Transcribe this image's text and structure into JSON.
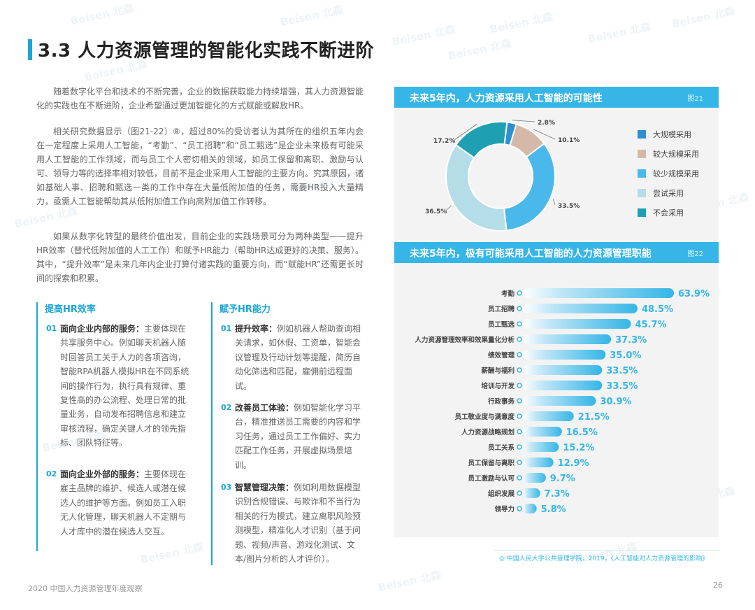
{
  "header": {
    "title": "3.3 人力资源管理的智能化实践不断进阶"
  },
  "body": {
    "p1": "随着数字化平台和技术的不断完善，企业的数据获取能力持续增强，其人力资源智能化的实践也在不断进阶，企业希望通过更加智能化的方式赋能或解放HR。",
    "p2": "相关研究数据显示（图21-22）⑧，超过80%的受访者认为其所在的组织五年内会在一定程度上采用人工智能，“考勤”、“员工招聘”和“员工甄选”是企业未来极有可能采用人工智能的工作领域，而与员工个人密切相关的领域，如员工保留和离职、激励与认可、领导力等的选择率相对较低，目前不是企业采用人工智能的主要方向。究其原因，诸如基础人事、招聘和甄选一类的工作中存在大量低附加值的任务，需要HR投入大量精力，亟需人工智能帮助其从低附加值工作向高附加值工作转移。",
    "p3": "如果从数字化转型的最终价值出发，目前企业的实践场景可分为两种类型——提升HR效率（替代低附加值的人工工作）和赋予HR能力（帮助HR达成更好的决策、服务）。其中，“提升效率”是未来几年内企业打算付诸实践的重要方向，而“赋能HR”还需更长时间的探索和积累。"
  },
  "col1": {
    "heading": "提高HR效率",
    "items": [
      {
        "num": "01",
        "lead": "面向企业内部的服务：",
        "text": "主要体现在共享服务中心。例如聊天机器人随时回答员工关于人力的各项咨询，智能RPA机器人模拟HR在不同系统间的操作行为，执行具有规律、重复性高的办公流程、处理日常的批量业务，自动发布招聘信息和建立审核流程，确定关键人才的领先指标、团队特征等。"
      },
      {
        "num": "02",
        "lead": "面向企业外部的服务：",
        "text": "主要体现在雇主品牌的维护、候选人或潜在候选人的维护等方面。例如员工入职无人化管理，聊天机器人不定期与人才库中的潜在候选人交互。"
      }
    ]
  },
  "col2": {
    "heading": "赋予HR能力",
    "items": [
      {
        "num": "01",
        "lead": "提升效率：",
        "text": "例如机器人帮助查询相关请求，如休假、工资单，智能会议管理及行动计划等提醒，简历自动化筛选和匹配，雇佣前远程面试。"
      },
      {
        "num": "02",
        "lead": "改善员工体验：",
        "text": "例如智能化学习平台，精准推送员工需要的内容和学习任务，通过员工工作偏好、实力匹配工作任务，开展虚拟场景培训。"
      },
      {
        "num": "03",
        "lead": "智慧管理决策：",
        "text": "例如利用数据模型识别合规错误、与欺诈和不当行为相关的行为模式，建立离职风险预测模型，精准化人才识别（基于问题、视频/声音、游戏化测试、文本/图片分析的人才评价）。"
      }
    ]
  },
  "fig21": {
    "title": "未来5年内，人力资源采用人工智能的可能性",
    "no": "图21"
  },
  "fig22": {
    "title": "未来5年内，极有可能采用人工智能的人力资源管理职能",
    "no": "图22"
  },
  "chart_data": [
    {
      "type": "pie",
      "title": "未来5年内，人力资源采用人工智能的可能性",
      "categories": [
        "大规模采用",
        "较大规模采用",
        "较少规模采用",
        "尝试采用",
        "不会采用"
      ],
      "values": [
        2.8,
        10.1,
        33.5,
        36.5,
        17.2
      ],
      "labels": [
        "2.8%",
        "10.1%",
        "33.5%",
        "36.5%",
        "17.2%"
      ],
      "colors": [
        "#2f8fd0",
        "#d4b8a8",
        "#4bb8ec",
        "#b5dde8",
        "#1f9fb2"
      ],
      "legend_position": "right"
    },
    {
      "type": "bar",
      "orientation": "horizontal",
      "title": "未来5年内，极有可能采用人工智能的人力资源管理职能",
      "categories": [
        "考勤",
        "员工招聘",
        "员工甄选",
        "人力资源管理效率和效果量化分析",
        "绩效管理",
        "薪酬与福利",
        "培训与开发",
        "行政事务",
        "员工敬业度与满意度",
        "人力资源战略规划",
        "员工关系",
        "员工保留与离职",
        "员工激励与认可",
        "组织发展",
        "领导力"
      ],
      "values": [
        63.9,
        48.5,
        45.7,
        37.3,
        35.0,
        33.5,
        33.5,
        30.9,
        21.5,
        16.5,
        15.2,
        12.9,
        9.7,
        7.3,
        5.8
      ],
      "labels": [
        "63.9%",
        "48.5%",
        "45.7%",
        "37.3%",
        "35.0%",
        "33.5%",
        "33.5%",
        "30.9%",
        "21.5%",
        "16.5%",
        "15.2%",
        "12.9%",
        "9.7%",
        "7.3%",
        "5.8%"
      ],
      "bar_color": "#35b6e6"
    }
  ],
  "source": "◎ 中国人民大学公共管理学院，2019，《人工智能对人力资源管理的影响》",
  "footer": {
    "left": "2020 中国人力资源管理年度观察",
    "page": "26"
  },
  "watermark": "Beisen 北森"
}
